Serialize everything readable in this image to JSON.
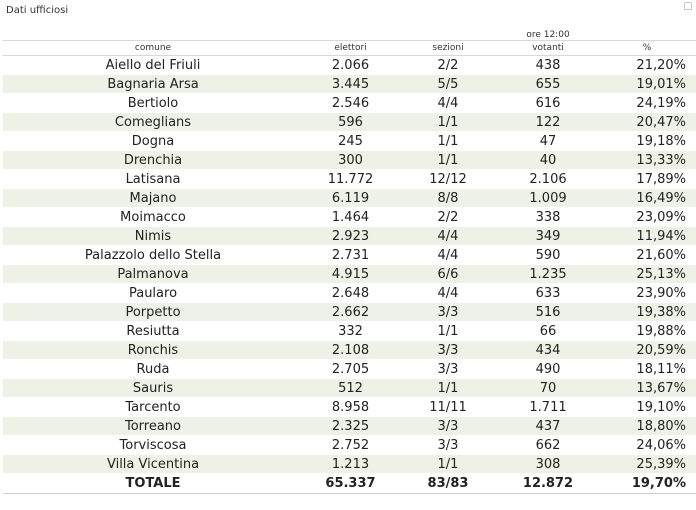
{
  "section_title": "Dati ufficiosi",
  "time_label": "ore 12:00",
  "columns": {
    "comune": "comune",
    "elettori": "elettori",
    "sezioni": "sezioni",
    "votanti": "votanti",
    "perc": "%"
  },
  "rows": [
    {
      "comune": "Aiello del Friuli",
      "elettori": "2.066",
      "sezioni": "2/2",
      "votanti": "438",
      "perc": "21,20%"
    },
    {
      "comune": "Bagnaria Arsa",
      "elettori": "3.445",
      "sezioni": "5/5",
      "votanti": "655",
      "perc": "19,01%"
    },
    {
      "comune": "Bertiolo",
      "elettori": "2.546",
      "sezioni": "4/4",
      "votanti": "616",
      "perc": "24,19%"
    },
    {
      "comune": "Comeglians",
      "elettori": "596",
      "sezioni": "1/1",
      "votanti": "122",
      "perc": "20,47%"
    },
    {
      "comune": "Dogna",
      "elettori": "245",
      "sezioni": "1/1",
      "votanti": "47",
      "perc": "19,18%"
    },
    {
      "comune": "Drenchia",
      "elettori": "300",
      "sezioni": "1/1",
      "votanti": "40",
      "perc": "13,33%"
    },
    {
      "comune": "Latisana",
      "elettori": "11.772",
      "sezioni": "12/12",
      "votanti": "2.106",
      "perc": "17,89%"
    },
    {
      "comune": "Majano",
      "elettori": "6.119",
      "sezioni": "8/8",
      "votanti": "1.009",
      "perc": "16,49%"
    },
    {
      "comune": "Moimacco",
      "elettori": "1.464",
      "sezioni": "2/2",
      "votanti": "338",
      "perc": "23,09%"
    },
    {
      "comune": "Nimis",
      "elettori": "2.923",
      "sezioni": "4/4",
      "votanti": "349",
      "perc": "11,94%"
    },
    {
      "comune": "Palazzolo dello Stella",
      "elettori": "2.731",
      "sezioni": "4/4",
      "votanti": "590",
      "perc": "21,60%"
    },
    {
      "comune": "Palmanova",
      "elettori": "4.915",
      "sezioni": "6/6",
      "votanti": "1.235",
      "perc": "25,13%"
    },
    {
      "comune": "Paularo",
      "elettori": "2.648",
      "sezioni": "4/4",
      "votanti": "633",
      "perc": "23,90%"
    },
    {
      "comune": "Porpetto",
      "elettori": "2.662",
      "sezioni": "3/3",
      "votanti": "516",
      "perc": "19,38%"
    },
    {
      "comune": "Resiutta",
      "elettori": "332",
      "sezioni": "1/1",
      "votanti": "66",
      "perc": "19,88%"
    },
    {
      "comune": "Ronchis",
      "elettori": "2.108",
      "sezioni": "3/3",
      "votanti": "434",
      "perc": "20,59%"
    },
    {
      "comune": "Ruda",
      "elettori": "2.705",
      "sezioni": "3/3",
      "votanti": "490",
      "perc": "18,11%"
    },
    {
      "comune": "Sauris",
      "elettori": "512",
      "sezioni": "1/1",
      "votanti": "70",
      "perc": "13,67%"
    },
    {
      "comune": "Tarcento",
      "elettori": "8.958",
      "sezioni": "11/11",
      "votanti": "1.711",
      "perc": "19,10%"
    },
    {
      "comune": "Torreano",
      "elettori": "2.325",
      "sezioni": "3/3",
      "votanti": "437",
      "perc": "18,80%"
    },
    {
      "comune": "Torviscosa",
      "elettori": "2.752",
      "sezioni": "3/3",
      "votanti": "662",
      "perc": "24,06%"
    },
    {
      "comune": "Villa Vicentina",
      "elettori": "1.213",
      "sezioni": "1/1",
      "votanti": "308",
      "perc": "25,39%"
    }
  ],
  "total": {
    "comune": "TOTALE",
    "elettori": "65.337",
    "sezioni": "83/83",
    "votanti": "12.872",
    "perc": "19,70%"
  }
}
